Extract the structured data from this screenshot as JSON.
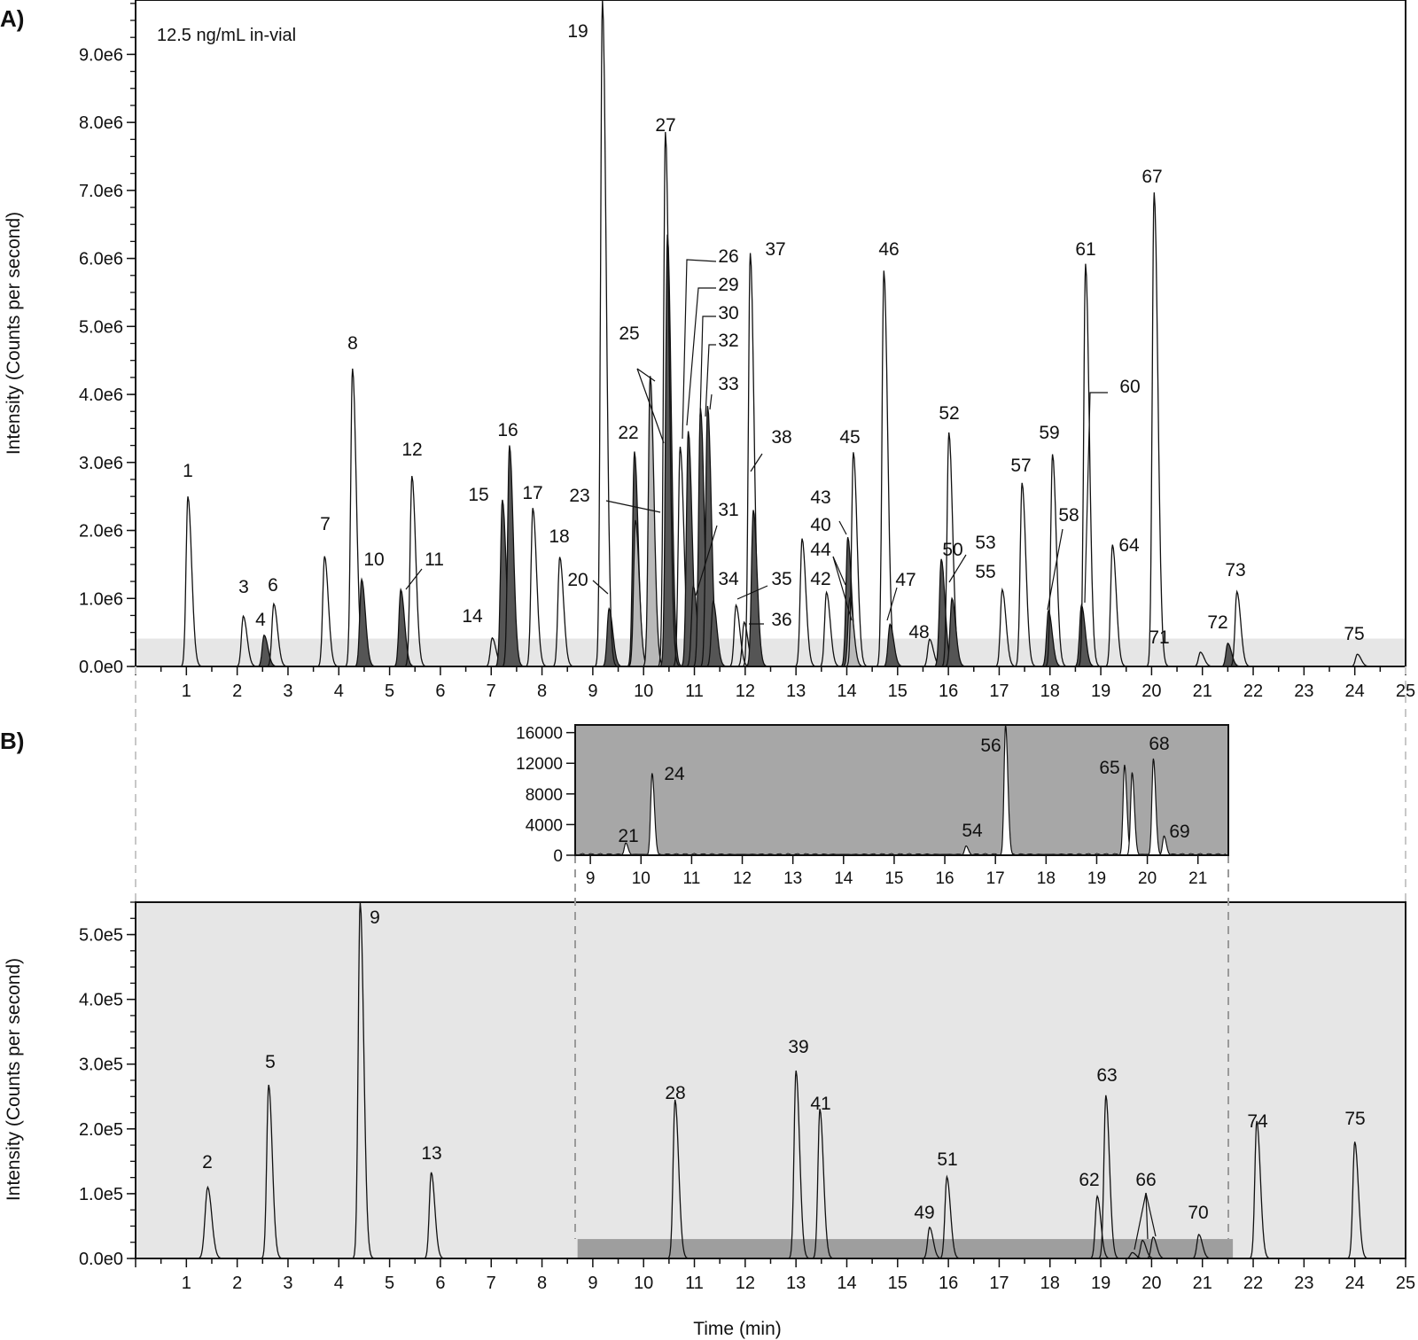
{
  "figure": {
    "panel_a_letter": "A)",
    "panel_b_letter": "B)"
  },
  "chart_data": [
    {
      "type": "line",
      "id": "panel-a",
      "annotation": "12.5 ng/mL in-vial",
      "xlabel": "",
      "ylabel": "Intensity (Counts per second)",
      "xlim": [
        0,
        25
      ],
      "ylim": [
        0,
        9800000
      ],
      "x_ticks": [
        1,
        2,
        3,
        4,
        5,
        6,
        7,
        8,
        9,
        10,
        11,
        12,
        13,
        14,
        15,
        16,
        17,
        18,
        19,
        20,
        21,
        22,
        23,
        24,
        25
      ],
      "y_ticks": [
        {
          "value": 0,
          "label": "0.0e0"
        },
        {
          "value": 1000000,
          "label": "1.0e6"
        },
        {
          "value": 2000000,
          "label": "2.0e6"
        },
        {
          "value": 3000000,
          "label": "3.0e6"
        },
        {
          "value": 4000000,
          "label": "4.0e6"
        },
        {
          "value": 5000000,
          "label": "5.0e6"
        },
        {
          "value": 6000000,
          "label": "6.0e6"
        },
        {
          "value": 7000000,
          "label": "7.0e6"
        },
        {
          "value": 8000000,
          "label": "8.0e6"
        },
        {
          "value": 9000000,
          "label": "9.0e6"
        }
      ],
      "zoom_band_max": 410000,
      "peaks": [
        {
          "label": "1",
          "rt": 1.03,
          "h": 2500000,
          "fill": "none"
        },
        {
          "label": "3",
          "rt": 2.12,
          "h": 740000,
          "fill": "none"
        },
        {
          "label": "4",
          "rt": 2.53,
          "h": 460000,
          "fill": "dark"
        },
        {
          "label": "6",
          "rt": 2.72,
          "h": 920000,
          "fill": "none"
        },
        {
          "label": "7",
          "rt": 3.72,
          "h": 1620000,
          "fill": "none"
        },
        {
          "label": "8",
          "rt": 4.27,
          "h": 4380000,
          "fill": "none"
        },
        {
          "label": "10",
          "rt": 4.45,
          "h": 1280000,
          "fill": "dark"
        },
        {
          "label": "11",
          "rt": 5.22,
          "h": 1130000,
          "fill": "dark"
        },
        {
          "label": "12",
          "rt": 5.44,
          "h": 2800000,
          "fill": "none"
        },
        {
          "label": "14",
          "rt": 7.02,
          "h": 420000,
          "fill": "none"
        },
        {
          "label": "15",
          "rt": 7.22,
          "h": 2450000,
          "fill": "dark"
        },
        {
          "label": "16",
          "rt": 7.36,
          "h": 3250000,
          "fill": "dark"
        },
        {
          "label": "17",
          "rt": 7.82,
          "h": 2330000,
          "fill": "none"
        },
        {
          "label": "18",
          "rt": 8.35,
          "h": 1610000,
          "fill": "none"
        },
        {
          "label": "20",
          "rt": 9.32,
          "h": 850000,
          "fill": "dark"
        },
        {
          "label": "19",
          "rt": 9.19,
          "h": 9800000,
          "fill": "none"
        },
        {
          "label": "22",
          "rt": 9.82,
          "h": 3160000,
          "fill": "dark"
        },
        {
          "label": "23",
          "rt": 9.84,
          "h": 2150000,
          "fill": "light"
        },
        {
          "label": "25",
          "rt": 10.13,
          "h": 4270000,
          "fill": "light"
        },
        {
          "label": "26",
          "rt": 10.47,
          "h": 6350000,
          "fill": "dark"
        },
        {
          "label": "27",
          "rt": 10.43,
          "h": 7860000,
          "fill": "none"
        },
        {
          "label": "29",
          "rt": 10.72,
          "h": 3230000,
          "fill": "none"
        },
        {
          "label": "30",
          "rt": 10.88,
          "h": 3460000,
          "fill": "dark"
        },
        {
          "label": "31",
          "rt": 10.98,
          "h": 1180000,
          "fill": "dark"
        },
        {
          "label": "32",
          "rt": 11.12,
          "h": 3800000,
          "fill": "dark"
        },
        {
          "label": "33",
          "rt": 11.26,
          "h": 3830000,
          "fill": "dark"
        },
        {
          "label": "34",
          "rt": 11.37,
          "h": 950000,
          "fill": "dark"
        },
        {
          "label": "35",
          "rt": 11.82,
          "h": 900000,
          "fill": "none"
        },
        {
          "label": "36",
          "rt": 11.98,
          "h": 650000,
          "fill": "none"
        },
        {
          "label": "37",
          "rt": 12.1,
          "h": 6080000,
          "fill": "none"
        },
        {
          "label": "38",
          "rt": 12.16,
          "h": 2300000,
          "fill": "dark"
        },
        {
          "label": "40",
          "rt": 13.12,
          "h": 1880000,
          "fill": "none"
        },
        {
          "label": "42",
          "rt": 13.6,
          "h": 1090000,
          "fill": "none"
        },
        {
          "label": "43",
          "rt": 14.02,
          "h": 1900000,
          "fill": "dark"
        },
        {
          "label": "44",
          "rt": 14.06,
          "h": 1000000,
          "fill": "light"
        },
        {
          "label": "45",
          "rt": 14.13,
          "h": 3150000,
          "fill": "none"
        },
        {
          "label": "46",
          "rt": 14.73,
          "h": 5820000,
          "fill": "none"
        },
        {
          "label": "47",
          "rt": 14.85,
          "h": 620000,
          "fill": "dark"
        },
        {
          "label": "48",
          "rt": 15.63,
          "h": 400000,
          "fill": "none"
        },
        {
          "label": "50",
          "rt": 15.86,
          "h": 1580000,
          "fill": "dark"
        },
        {
          "label": "52",
          "rt": 16.01,
          "h": 3440000,
          "fill": "none"
        },
        {
          "label": "53",
          "rt": 16.07,
          "h": 1000000,
          "fill": "dark"
        },
        {
          "label": "55",
          "rt": 17.06,
          "h": 1130000,
          "fill": "none"
        },
        {
          "label": "57",
          "rt": 17.45,
          "h": 2700000,
          "fill": "none"
        },
        {
          "label": "58",
          "rt": 17.97,
          "h": 820000,
          "fill": "dark"
        },
        {
          "label": "59",
          "rt": 18.05,
          "h": 3120000,
          "fill": "none"
        },
        {
          "label": "60",
          "rt": 18.62,
          "h": 900000,
          "fill": "dark"
        },
        {
          "label": "61",
          "rt": 18.7,
          "h": 5920000,
          "fill": "none"
        },
        {
          "label": "64",
          "rt": 19.23,
          "h": 1790000,
          "fill": "none"
        },
        {
          "label": "67",
          "rt": 20.05,
          "h": 6970000,
          "fill": "none"
        },
        {
          "label": "71",
          "rt": 20.96,
          "h": 210000,
          "fill": "none"
        },
        {
          "label": "72",
          "rt": 21.5,
          "h": 340000,
          "fill": "dark"
        },
        {
          "label": "73",
          "rt": 21.68,
          "h": 1100000,
          "fill": "none"
        },
        {
          "label": "75",
          "rt": 24.05,
          "h": 180000,
          "fill": "none"
        }
      ]
    },
    {
      "type": "line",
      "id": "panel-b-inset",
      "xlim": [
        8.7,
        21.6
      ],
      "ylim": [
        0,
        17000
      ],
      "x_ticks": [
        9,
        10,
        11,
        12,
        13,
        14,
        15,
        16,
        17,
        18,
        19,
        20,
        21
      ],
      "y_ticks": [
        {
          "value": 0,
          "label": "0"
        },
        {
          "value": 4000,
          "label": "4000"
        },
        {
          "value": 8000,
          "label": "8000"
        },
        {
          "value": 12000,
          "label": "12000"
        },
        {
          "value": 16000,
          "label": "16000"
        }
      ],
      "peaks": [
        {
          "label": "21",
          "rt": 9.7,
          "h": 1600
        },
        {
          "label": "24",
          "rt": 10.22,
          "h": 10700
        },
        {
          "label": "54",
          "rt": 16.42,
          "h": 1200
        },
        {
          "label": "56",
          "rt": 17.2,
          "h": 17000
        },
        {
          "label": "65",
          "rt": 19.55,
          "h": 11800
        },
        {
          "label": "",
          "rt": 19.7,
          "h": 10800
        },
        {
          "label": "68",
          "rt": 20.12,
          "h": 12600
        },
        {
          "label": "69",
          "rt": 20.33,
          "h": 2500
        }
      ]
    },
    {
      "type": "line",
      "id": "panel-b",
      "xlabel": "Time (min)",
      "ylabel": "Intensity (Counts per second)",
      "xlim": [
        0,
        25
      ],
      "ylim": [
        0,
        550000
      ],
      "x_ticks": [
        1,
        2,
        3,
        4,
        5,
        6,
        7,
        8,
        9,
        10,
        11,
        12,
        13,
        14,
        15,
        16,
        17,
        18,
        19,
        20,
        21,
        22,
        23,
        24,
        25
      ],
      "y_ticks": [
        {
          "value": 0,
          "label": "0.0e0"
        },
        {
          "value": 100000,
          "label": "1.0e5"
        },
        {
          "value": 200000,
          "label": "2.0e5"
        },
        {
          "value": 300000,
          "label": "3.0e5"
        },
        {
          "value": 400000,
          "label": "4.0e5"
        },
        {
          "value": 500000,
          "label": "5.0e5"
        }
      ],
      "zoom_region": {
        "x_start": 8.7,
        "x_end": 21.6,
        "y_max": 30000
      },
      "peaks": [
        {
          "label": "2",
          "rt": 1.42,
          "h": 110000
        },
        {
          "label": "5",
          "rt": 2.62,
          "h": 268000
        },
        {
          "label": "9",
          "rt": 4.42,
          "h": 550000
        },
        {
          "label": "13",
          "rt": 5.82,
          "h": 133000
        },
        {
          "label": "28",
          "rt": 10.62,
          "h": 245000
        },
        {
          "label": "39",
          "rt": 13.0,
          "h": 290000
        },
        {
          "label": "41",
          "rt": 13.47,
          "h": 231000
        },
        {
          "label": "49",
          "rt": 15.63,
          "h": 48000
        },
        {
          "label": "51",
          "rt": 15.97,
          "h": 126000
        },
        {
          "label": "62",
          "rt": 18.93,
          "h": 96000
        },
        {
          "label": "63",
          "rt": 19.1,
          "h": 252000
        },
        {
          "label": "66",
          "rt": 19.62,
          "h": 9000
        },
        {
          "label": "",
          "rt": 19.82,
          "h": 28000
        },
        {
          "label": "",
          "rt": 20.03,
          "h": 33000
        },
        {
          "label": "70",
          "rt": 20.93,
          "h": 37000
        },
        {
          "label": "74",
          "rt": 22.07,
          "h": 212000
        },
        {
          "label": "75",
          "rt": 24.0,
          "h": 180000
        }
      ]
    }
  ]
}
